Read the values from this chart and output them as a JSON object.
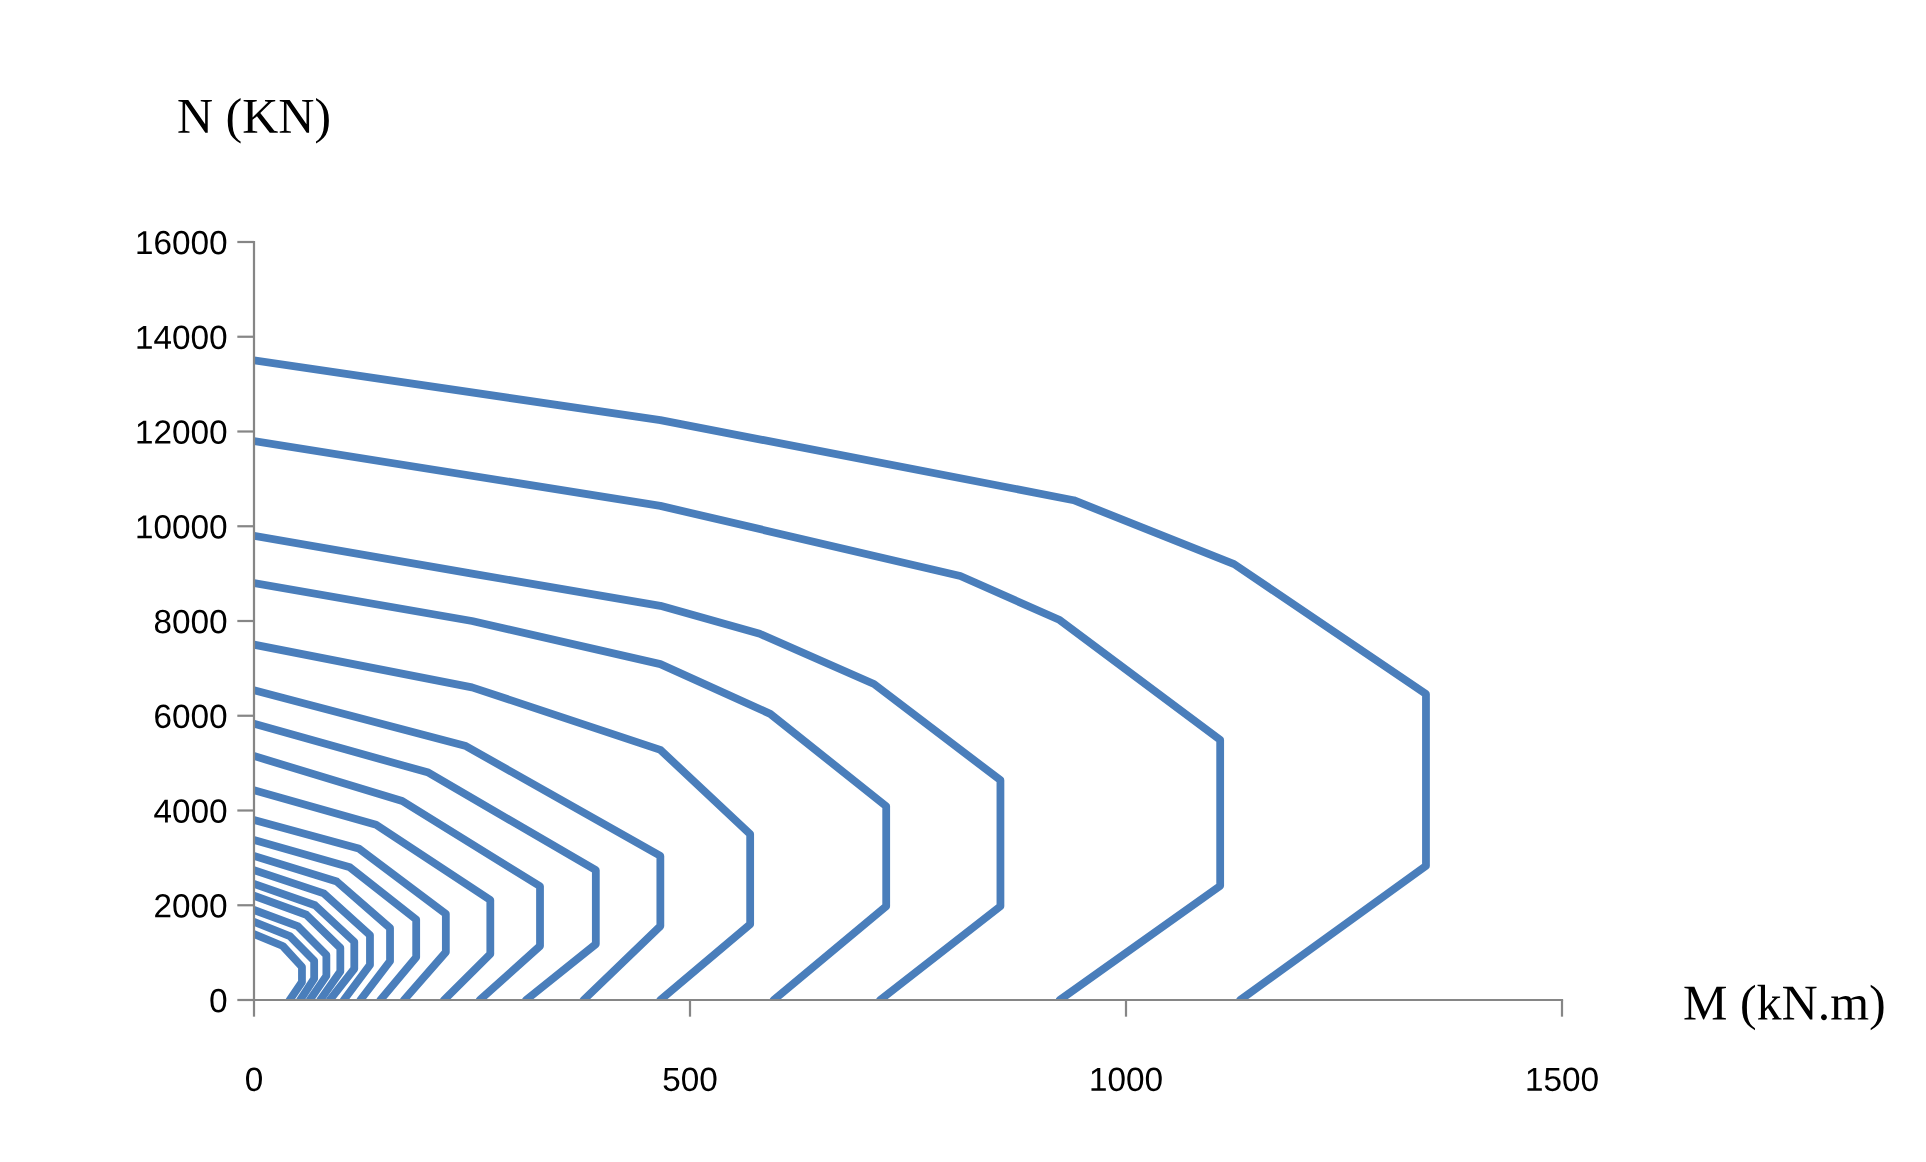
{
  "chart_data": {
    "type": "line",
    "xlabel": "M (kN.m)",
    "ylabel": "N (KN)",
    "xlim": [
      0,
      1500
    ],
    "xticks": [
      0,
      500,
      1000,
      1500
    ],
    "ylim": [
      0,
      16000
    ],
    "yticks": [
      0,
      2000,
      4000,
      6000,
      8000,
      10000,
      12000,
      14000,
      16000
    ],
    "grid": false,
    "marker": "none",
    "line_style": "solid",
    "series": [
      {
        "color": "#4a7ebb",
        "x": [
          0,
          466,
          940,
          1124,
          1344,
          1344,
          1131
        ],
        "values": [
          13500,
          12240,
          10550,
          9200,
          6460,
          2830,
          0
        ]
      },
      {
        "color": "#4a7ebb",
        "x": [
          0,
          466,
          810,
          924,
          1108,
          1108,
          924
        ],
        "values": [
          11800,
          10430,
          8950,
          8020,
          5490,
          2410,
          0
        ]
      },
      {
        "color": "#4a7ebb",
        "x": [
          0,
          250,
          466,
          580,
          711,
          856,
          856,
          718
        ],
        "values": [
          9800,
          9000,
          8320,
          7730,
          6670,
          4640,
          1980,
          0
        ]
      },
      {
        "color": "#4a7ebb",
        "x": [
          0,
          250,
          466,
          592,
          725,
          725,
          596
        ],
        "values": [
          8800,
          8000,
          7090,
          6040,
          4090,
          1980,
          0
        ]
      },
      {
        "color": "#4a7ebb",
        "x": [
          0,
          250,
          466,
          569,
          569,
          466
        ],
        "values": [
          7500,
          6600,
          5280,
          3500,
          1600,
          0
        ]
      },
      {
        "color": "#4a7ebb",
        "x": [
          0,
          243,
          466,
          466,
          378
        ],
        "values": [
          6540,
          5360,
          3040,
          1560,
          0
        ]
      },
      {
        "color": "#4a7ebb",
        "x": [
          0,
          200,
          392,
          392,
          312
        ],
        "values": [
          5830,
          4800,
          2740,
          1180,
          0
        ]
      },
      {
        "color": "#4a7ebb",
        "x": [
          0,
          170,
          328,
          328,
          259
        ],
        "values": [
          5150,
          4200,
          2400,
          1140,
          0
        ]
      },
      {
        "color": "#4a7ebb",
        "x": [
          0,
          140,
          271,
          271,
          218
        ],
        "values": [
          4430,
          3700,
          2110,
          970,
          0
        ]
      },
      {
        "color": "#4a7ebb",
        "x": [
          0,
          120,
          220,
          220,
          172
        ],
        "values": [
          3800,
          3200,
          1820,
          1010,
          0
        ]
      },
      {
        "color": "#4a7ebb",
        "x": [
          0,
          110,
          186,
          186,
          145
        ],
        "values": [
          3380,
          2800,
          1700,
          900,
          0
        ]
      },
      {
        "color": "#4a7ebb",
        "x": [
          0,
          95,
          156,
          156,
          122
        ],
        "values": [
          3040,
          2500,
          1520,
          820,
          0
        ]
      },
      {
        "color": "#4a7ebb",
        "x": [
          0,
          80,
          133,
          133,
          103
        ],
        "values": [
          2740,
          2250,
          1370,
          740,
          0
        ]
      },
      {
        "color": "#4a7ebb",
        "x": [
          0,
          70,
          115,
          115,
          87
        ],
        "values": [
          2450,
          2000,
          1230,
          660,
          0
        ]
      },
      {
        "color": "#4a7ebb",
        "x": [
          0,
          60,
          99,
          99,
          76
        ],
        "values": [
          2200,
          1800,
          1100,
          600,
          0
        ]
      },
      {
        "color": "#4a7ebb",
        "x": [
          0,
          50,
          83,
          83,
          64
        ],
        "values": [
          1900,
          1560,
          950,
          510,
          0
        ]
      },
      {
        "color": "#4a7ebb",
        "x": [
          0,
          41,
          69,
          69,
          53
        ],
        "values": [
          1650,
          1350,
          830,
          450,
          0
        ]
      },
      {
        "color": "#4a7ebb",
        "x": [
          0,
          33,
          55,
          55,
          41
        ],
        "values": [
          1390,
          1140,
          700,
          380,
          0
        ]
      }
    ]
  }
}
